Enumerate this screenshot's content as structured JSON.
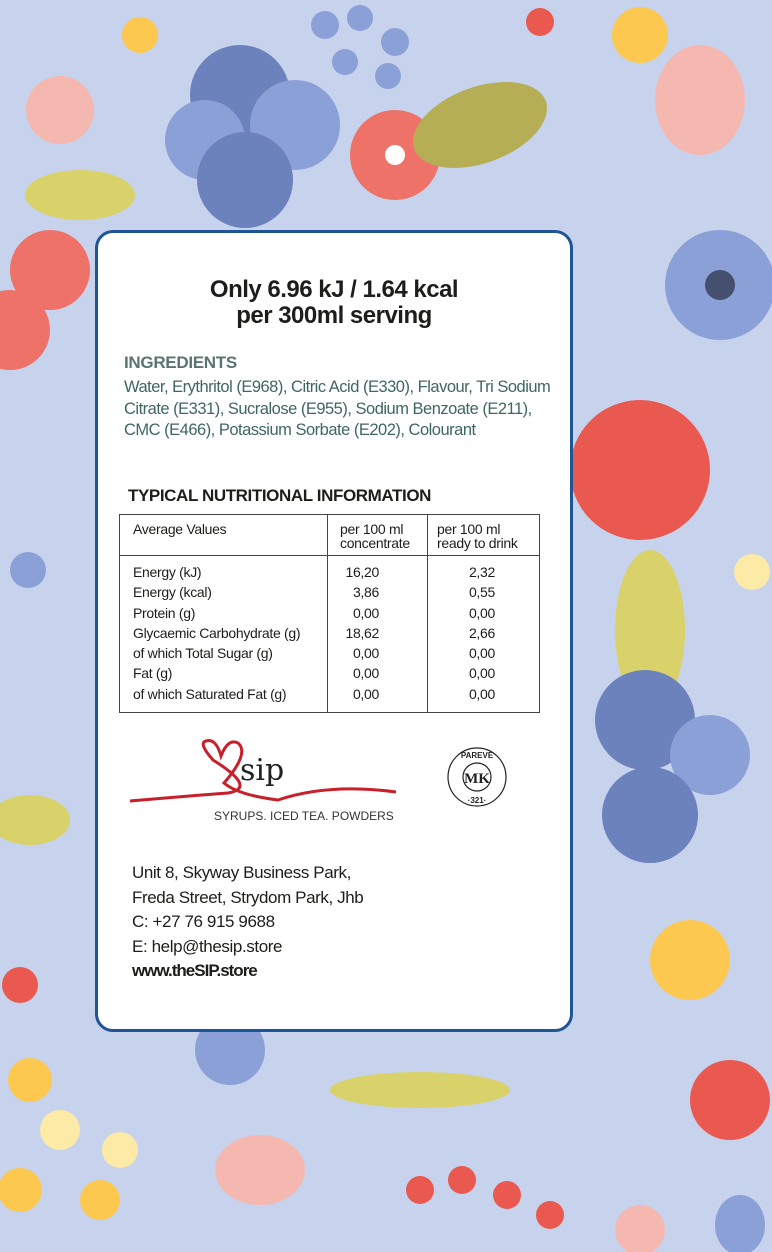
{
  "headline": {
    "line1": "Only 6.96 kJ / 1.64 kcal",
    "line2": "per 300ml serving"
  },
  "ingredients": {
    "heading": "INGREDIENTS",
    "text": "Water, Erythritol (E968), Citric Acid (E330), Flavour, Tri Sodium Citrate (E331), Sucralose (E955), Sodium Benzoate (E211), CMC (E466), Potassium Sorbate (E202), Colourant"
  },
  "nutrition": {
    "heading": "TYPICAL NUTRITIONAL INFORMATION",
    "columns": [
      "Average Values",
      "per 100 ml concentrate",
      "per 100 ml ready to drink"
    ],
    "col2": {
      "line1": "per 100 ml",
      "line2": "concentrate"
    },
    "col3": {
      "line1": "per 100 ml",
      "line2": "ready to drink"
    },
    "rows": [
      {
        "label": "Energy (kJ)",
        "concentrate": "16,20",
        "ready": "2,32"
      },
      {
        "label": "Energy (kcal)",
        "concentrate": "3,86",
        "ready": "0,55"
      },
      {
        "label": "Protein (g)",
        "concentrate": "0,00",
        "ready": "0,00"
      },
      {
        "label": "Glycaemic Carbohydrate (g)",
        "concentrate": "18,62",
        "ready": "2,66"
      },
      {
        "label": "of which Total Sugar (g)",
        "concentrate": "0,00",
        "ready": "0,00"
      },
      {
        "label": "Fat (g)",
        "concentrate": "0,00",
        "ready": "0,00"
      },
      {
        "label": "of which Saturated Fat (g)",
        "concentrate": "0,00",
        "ready": "0,00"
      }
    ]
  },
  "brand": {
    "logo_text": "sip",
    "tagline": "SYRUPS. ICED TEA. POWDERS",
    "logo_color": "#c8202a"
  },
  "kosher_badge": {
    "top": "PAREVE",
    "center": "MK",
    "bottom": "·321·"
  },
  "contact": {
    "address1": "Unit 8, Skyway Business Park,",
    "address2": "Freda Street, Strydom Park, Jhb",
    "phone": "C:  +27 76 915 9688",
    "email": "E: help@thesip.store",
    "website": "www.theSIP.store"
  },
  "colors": {
    "background": "#c7d2ec",
    "card_border": "#1f5596",
    "ingredients_text": "#3f6662"
  }
}
